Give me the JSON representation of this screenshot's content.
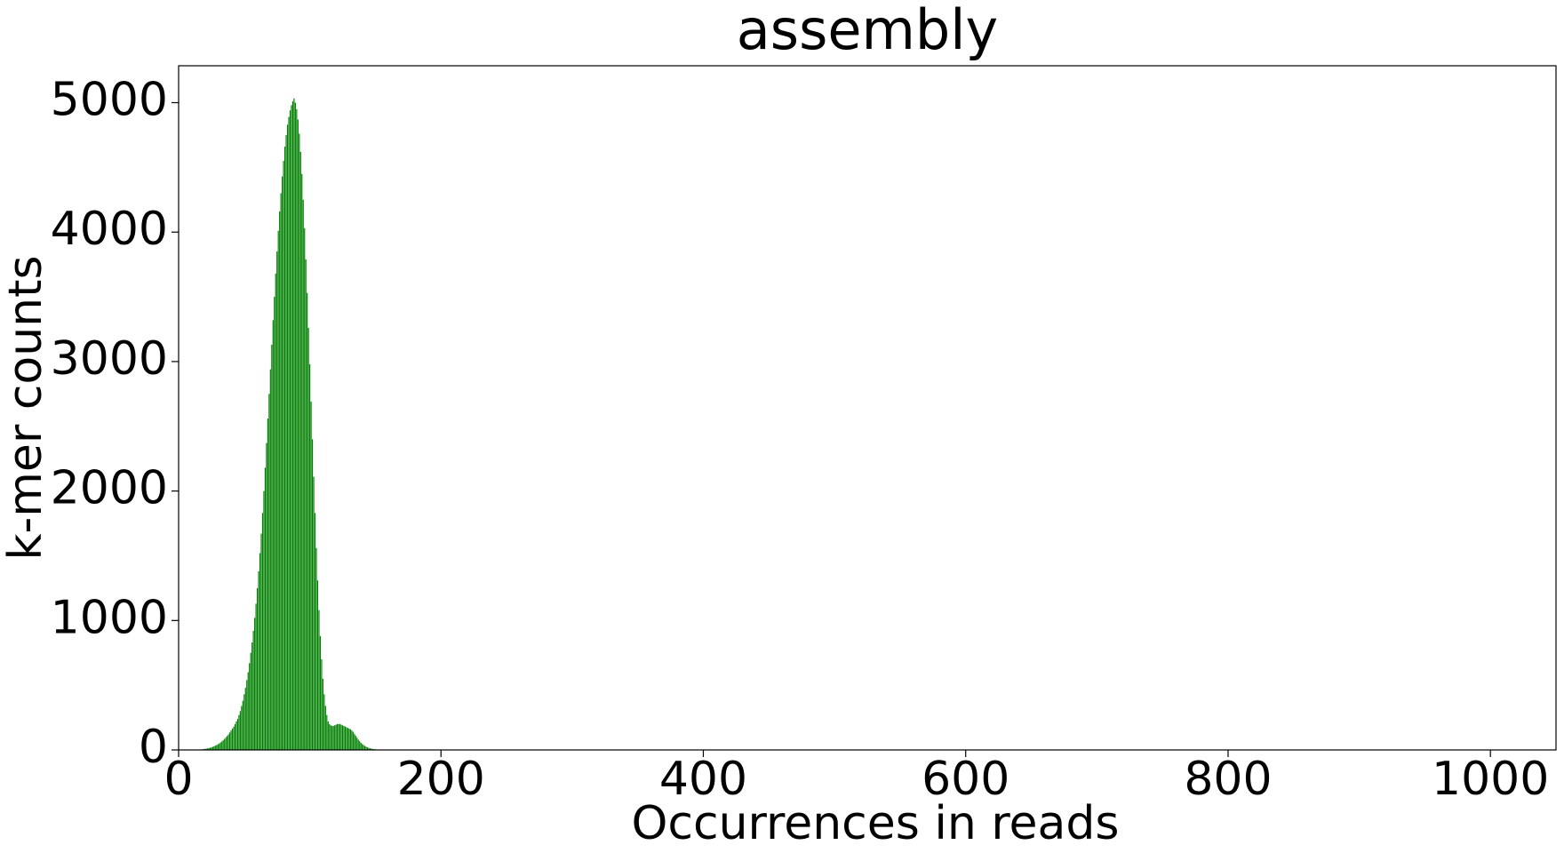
{
  "chart_data": {
    "type": "bar",
    "title": "assembly",
    "xlabel": "Occurrences in reads",
    "ylabel": "k-mer counts",
    "color": "#008000",
    "x": [
      15,
      16,
      17,
      18,
      19,
      20,
      21,
      22,
      23,
      24,
      25,
      26,
      27,
      28,
      29,
      30,
      31,
      32,
      33,
      34,
      35,
      36,
      37,
      38,
      39,
      40,
      41,
      42,
      43,
      44,
      45,
      46,
      47,
      48,
      49,
      50,
      51,
      52,
      53,
      54,
      55,
      56,
      57,
      58,
      59,
      60,
      61,
      62,
      63,
      64,
      65,
      66,
      67,
      68,
      69,
      70,
      71,
      72,
      73,
      74,
      75,
      76,
      77,
      78,
      79,
      80,
      81,
      82,
      83,
      84,
      85,
      86,
      87,
      88,
      89,
      90,
      91,
      92,
      93,
      94,
      95,
      96,
      97,
      98,
      99,
      100,
      101,
      102,
      103,
      104,
      105,
      106,
      107,
      108,
      109,
      110,
      111,
      112,
      113,
      114,
      115,
      116,
      117,
      118,
      119,
      120,
      121,
      122,
      123,
      124,
      125,
      126,
      127,
      128,
      129,
      130,
      131,
      132,
      133,
      134,
      135,
      136,
      137,
      138,
      139,
      140,
      141,
      142,
      143,
      144,
      145,
      146,
      147,
      148,
      149,
      150,
      151,
      152,
      153,
      154,
      155,
      156,
      157,
      158,
      159,
      160
    ],
    "values": [
      2,
      3,
      4,
      5,
      6,
      8,
      10,
      12,
      14,
      17,
      20,
      24,
      28,
      33,
      38,
      44,
      50,
      58,
      66,
      75,
      85,
      96,
      108,
      120,
      135,
      150,
      165,
      180,
      200,
      220,
      240,
      270,
      300,
      340,
      380,
      430,
      480,
      540,
      600,
      670,
      750,
      830,
      920,
      1020,
      1130,
      1250,
      1380,
      1520,
      1670,
      1830,
      2000,
      2180,
      2370,
      2560,
      2750,
      2940,
      3130,
      3320,
      3500,
      3680,
      3850,
      4010,
      4160,
      4300,
      4430,
      4550,
      4660,
      4750,
      4830,
      4890,
      4940,
      4980,
      5010,
      5033,
      5000,
      4950,
      4870,
      4760,
      4620,
      4450,
      4250,
      4030,
      3790,
      3530,
      3260,
      2980,
      2690,
      2400,
      2110,
      1830,
      1560,
      1310,
      1080,
      880,
      700,
      550,
      430,
      340,
      270,
      220,
      200,
      190,
      185,
      185,
      190,
      195,
      200,
      200,
      200,
      195,
      190,
      185,
      180,
      175,
      170,
      165,
      160,
      150,
      140,
      125,
      110,
      95,
      80,
      68,
      56,
      46,
      38,
      31,
      25,
      20,
      16,
      13,
      10,
      8,
      6,
      5,
      4,
      3,
      3,
      2,
      2,
      2,
      1,
      1,
      1,
      1
    ],
    "xlim": [
      0,
      1050
    ],
    "ylim": [
      0,
      5285
    ],
    "xticks": [
      0,
      200,
      400,
      600,
      800,
      1000
    ],
    "yticks": [
      0,
      1000,
      2000,
      3000,
      4000,
      5000
    ]
  }
}
